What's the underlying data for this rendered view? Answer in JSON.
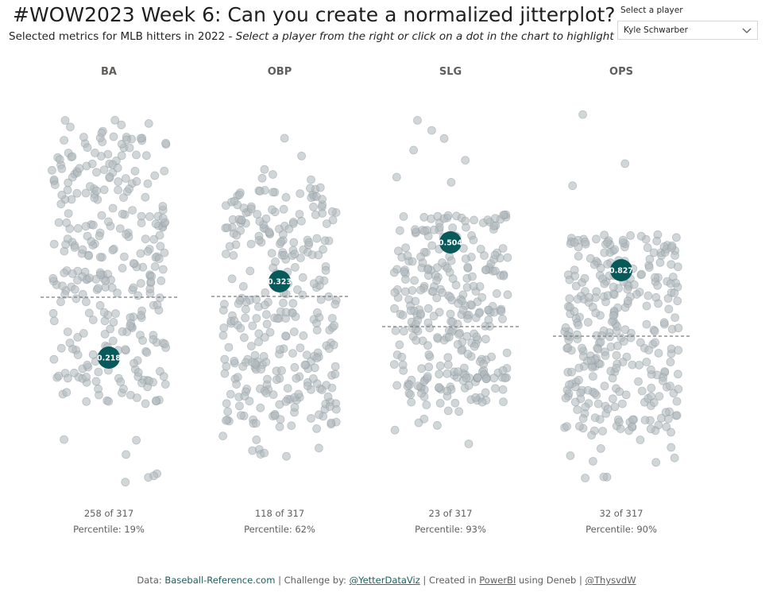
{
  "header": {
    "title": "#WOW2023 Week 6: Can you create a normalized jitterplot?",
    "subtitle_main": "Selected metrics for MLB hitters in 2022 - ",
    "subtitle_hint": "Select a player from the right or click on a dot in the chart to highlight"
  },
  "slicer": {
    "label": "Select a player",
    "value": "Kyle Schwarber",
    "icon": "chevron-down-icon"
  },
  "colors": {
    "dot": "#b3bbbf",
    "dot_stroke": "#8f999e",
    "highlight": "#08595a",
    "median_line": "#7a7a7a",
    "link": "#1d5f5c"
  },
  "chart_data": {
    "type": "scatter",
    "player_count": 317,
    "selected_player": "Kyle Schwarber",
    "metrics": [
      {
        "name": "BA",
        "selected_value": "0.218",
        "rank_text": "258 of 317",
        "percentile_text": "Percentile: 19%",
        "percentile": 19
      },
      {
        "name": "OBP",
        "selected_value": "0.323",
        "rank_text": "118 of 317",
        "percentile_text": "Percentile: 62%",
        "percentile": 62
      },
      {
        "name": "SLG",
        "selected_value": "0.504",
        "rank_text": "23 of 317",
        "percentile_text": "Percentile: 93%",
        "percentile": 93
      },
      {
        "name": "OPS",
        "selected_value": "0.827",
        "rank_text": "32 of 317",
        "percentile_text": "Percentile: 90%",
        "percentile": 90
      }
    ]
  },
  "footer": {
    "prefix": "Data: ",
    "source": "Baseball-Reference.com",
    "sep1": "  |  Challenge by: ",
    "challenger": "@YetterDataViz",
    "sep2": "  |  Created in ",
    "tool": "PowerBI",
    "using": " using Deneb  |  ",
    "author": "@ThysvdW"
  }
}
